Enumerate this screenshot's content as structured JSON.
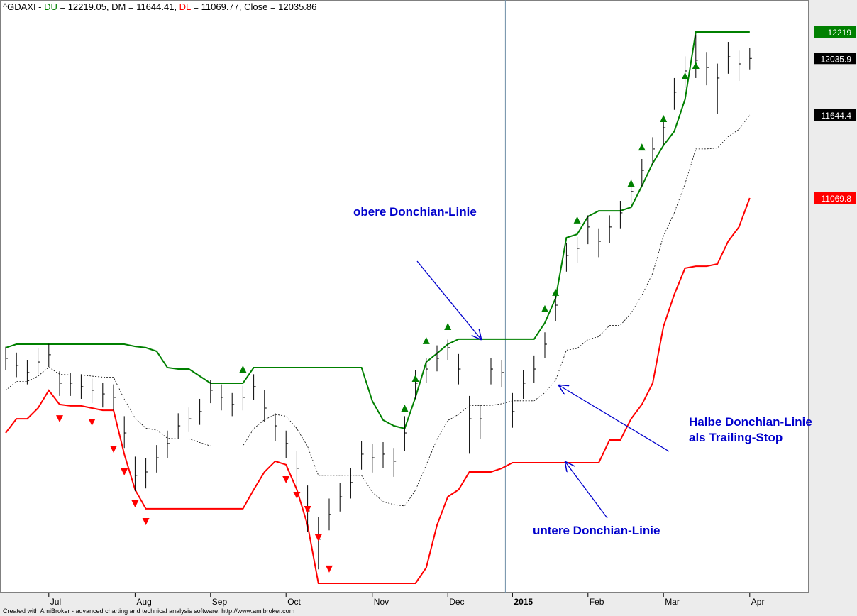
{
  "chart_data": {
    "type": "ohlc",
    "legend_text": [
      "^GDAXI - ",
      " = 12219.05, ",
      " = 11644.41, ",
      " = 11069.77, Close = 12035.86"
    ],
    "footer": "Created with AmiBroker - advanced charting and technical analysis software. http://www.amibroker.com",
    "ylim": [
      8344,
      12440
    ],
    "yticks": [
      {
        "value": 12219.05,
        "label": "12219"
      },
      {
        "value": 12035.86,
        "label": "12035.9"
      },
      {
        "value": 11644.41,
        "label": "11644.4"
      },
      {
        "value": 11069.77,
        "label": "11069.8"
      }
    ],
    "ytick_colors": [
      "#008000",
      "#000000",
      "#000000",
      "#ff0000"
    ],
    "categories": [
      null,
      null,
      null,
      null,
      "Jul",
      null,
      null,
      null,
      null,
      null,
      null,
      null,
      "Aug",
      null,
      null,
      null,
      null,
      null,
      null,
      "Sep",
      null,
      null,
      null,
      null,
      null,
      null,
      "Oct",
      null,
      null,
      null,
      null,
      null,
      null,
      null,
      "Nov",
      null,
      null,
      null,
      null,
      null,
      null,
      "Dec",
      null,
      null,
      null,
      null,
      null,
      "2015",
      null,
      null,
      null,
      null,
      null,
      null,
      "Feb",
      null,
      null,
      null,
      null,
      null,
      null,
      "Mar",
      null,
      null,
      null,
      null,
      null,
      null,
      null,
      "Apr"
    ],
    "bars": {
      "color": "#000000",
      "high": [
        10040,
        10000,
        9950,
        10030,
        10060,
        9870,
        9860,
        9850,
        9820,
        9790,
        9780,
        9560,
        9280,
        9270,
        9360,
        9460,
        9580,
        9620,
        9680,
        9810,
        9780,
        9720,
        9770,
        9850,
        9740,
        9580,
        9460,
        9320,
        9080,
        8860,
        8990,
        9100,
        9200,
        9390,
        9370,
        9380,
        9340,
        9560,
        9880,
        9960,
        10050,
        10090,
        9990,
        9700,
        9640,
        9960,
        9950,
        9720,
        9880,
        9980,
        10140,
        10420,
        10760,
        10800,
        10950,
        10860,
        10950,
        11050,
        11200,
        11340,
        11490,
        11640,
        11900,
        12050,
        12200,
        12080,
        12000,
        12150,
        12090,
        12110
      ],
      "low": [
        9880,
        9830,
        9780,
        9850,
        9900,
        9700,
        9700,
        9680,
        9650,
        9620,
        9600,
        9340,
        9040,
        9060,
        9170,
        9270,
        9400,
        9450,
        9500,
        9650,
        9600,
        9560,
        9600,
        9670,
        9520,
        9390,
        9270,
        9060,
        8760,
        8500,
        8770,
        8900,
        8990,
        9190,
        9170,
        9200,
        9140,
        9320,
        9680,
        9790,
        9870,
        9950,
        9780,
        9300,
        9400,
        9780,
        9760,
        9480,
        9680,
        9790,
        9960,
        10220,
        10560,
        10620,
        10750,
        10660,
        10760,
        10860,
        11000,
        11150,
        11300,
        11440,
        11680,
        11830,
        11900,
        11850,
        11650,
        11930,
        11880,
        11960
      ],
      "close": [
        9960,
        9911,
        9862,
        9935,
        9985,
        9788,
        9788,
        9764,
        9739,
        9714,
        9690,
        9444,
        9150,
        9174,
        9272,
        9371,
        9493,
        9542,
        9592,
        9739,
        9690,
        9641,
        9690,
        9764,
        9616,
        9493,
        9371,
        9199,
        8904,
        8708,
        8880,
        9002,
        9101,
        9297,
        9272,
        9297,
        9248,
        9444,
        9788,
        9886,
        9960,
        10034,
        9886,
        9542,
        9542,
        9886,
        9862,
        9592,
        9788,
        9886,
        10058,
        10328,
        10672,
        10721,
        10869,
        10770,
        10869,
        10967,
        11115,
        11261,
        11409,
        11556,
        11802,
        11949,
        12023,
        11973,
        11900,
        12047,
        11998,
        12035.86
      ]
    },
    "series": [
      {
        "name": "DU",
        "color": "#008000",
        "values": [
          10034,
          10058,
          10058,
          10058,
          10058,
          10058,
          10058,
          10058,
          10058,
          10058,
          10058,
          10058,
          10043,
          10034,
          10009,
          9896,
          9886,
          9886,
          9837,
          9788,
          9788,
          9788,
          9788,
          9896,
          9896,
          9896,
          9896,
          9896,
          9896,
          9896,
          9896,
          9896,
          9896,
          9896,
          9665,
          9533,
          9493,
          9474,
          9690,
          9935,
          9994,
          10058,
          10093,
          10093,
          10093,
          10093,
          10093,
          10093,
          10093,
          10093,
          10206,
          10377,
          10795,
          10819,
          10942,
          10981,
          10981,
          10981,
          11006,
          11153,
          11310,
          11433,
          11531,
          11752,
          12219,
          12219,
          12219,
          12219,
          12219,
          12219.05
        ]
      },
      {
        "name": "DM",
        "color": "#000000",
        "dashed": true,
        "values": [
          9739,
          9800,
          9800,
          9837,
          9899,
          9850,
          9845,
          9845,
          9837,
          9830,
          9830,
          9678,
          9547,
          9477,
          9464,
          9408,
          9403,
          9403,
          9378,
          9354,
          9354,
          9354,
          9354,
          9474,
          9535,
          9572,
          9560,
          9474,
          9351,
          9150,
          9150,
          9150,
          9150,
          9150,
          9034,
          8968,
          8948,
          8939,
          9047,
          9223,
          9400,
          9530,
          9572,
          9634,
          9634,
          9634,
          9646,
          9666,
          9666,
          9666,
          9722,
          9808,
          10017,
          10029,
          10090,
          10110,
          10188,
          10188,
          10274,
          10397,
          10549,
          10807,
          10967,
          11168,
          11409,
          11409,
          11416,
          11495,
          11544,
          11644.41
        ]
      },
      {
        "name": "DL",
        "color": "#ff0000",
        "values": [
          9444,
          9542,
          9542,
          9616,
          9739,
          9641,
          9631,
          9631,
          9616,
          9601,
          9601,
          9297,
          9051,
          8919,
          8919,
          8919,
          8919,
          8919,
          8919,
          8919,
          8919,
          8919,
          8919,
          9051,
          9174,
          9248,
          9224,
          9051,
          8806,
          8403,
          8403,
          8403,
          8403,
          8403,
          8403,
          8403,
          8403,
          8403,
          8403,
          8511,
          8806,
          9002,
          9051,
          9174,
          9174,
          9174,
          9199,
          9238,
          9238,
          9238,
          9238,
          9238,
          9238,
          9238,
          9238,
          9238,
          9395,
          9395,
          9542,
          9641,
          9788,
          10181,
          10402,
          10584,
          10598,
          10598,
          10613,
          10770,
          10869,
          11069.77
        ]
      }
    ],
    "buy_signals": {
      "color": "#008000",
      "values": [
        null,
        null,
        null,
        null,
        null,
        null,
        null,
        null,
        null,
        null,
        null,
        null,
        null,
        null,
        null,
        null,
        null,
        null,
        null,
        null,
        null,
        null,
        9886,
        null,
        null,
        null,
        null,
        null,
        null,
        null,
        null,
        null,
        null,
        null,
        null,
        null,
        null,
        9616,
        9822,
        10083,
        null,
        10181,
        null,
        null,
        null,
        null,
        null,
        null,
        null,
        null,
        10304,
        10417,
        null,
        10918,
        null,
        null,
        null,
        null,
        11173,
        11423,
        null,
        11620,
        null,
        11915,
        11988,
        null,
        null,
        null,
        null,
        null
      ]
    },
    "sell_signals": {
      "color": "#ff0000",
      "values": [
        null,
        null,
        null,
        null,
        null,
        9542,
        null,
        null,
        9518,
        null,
        9331,
        9174,
        8953,
        8830,
        null,
        null,
        null,
        null,
        null,
        null,
        null,
        null,
        null,
        null,
        null,
        null,
        9120,
        9012,
        8914,
        8718,
        8502,
        null,
        null,
        null,
        null,
        null,
        null,
        null,
        null,
        null,
        null,
        null,
        null,
        null,
        null,
        null,
        null,
        null,
        null,
        null,
        null,
        null,
        null,
        null,
        null,
        null,
        null,
        null,
        null,
        null,
        null,
        null,
        null,
        null,
        null,
        null,
        null,
        null,
        null,
        null
      ]
    },
    "annotations": [
      {
        "lines": [
          "obere Donchian-Linie"
        ]
      },
      {
        "lines": [
          "Halbe Donchian-Linie",
          "als Trailing-Stop"
        ]
      },
      {
        "lines": [
          "untere Donchian-Linie"
        ]
      }
    ]
  }
}
